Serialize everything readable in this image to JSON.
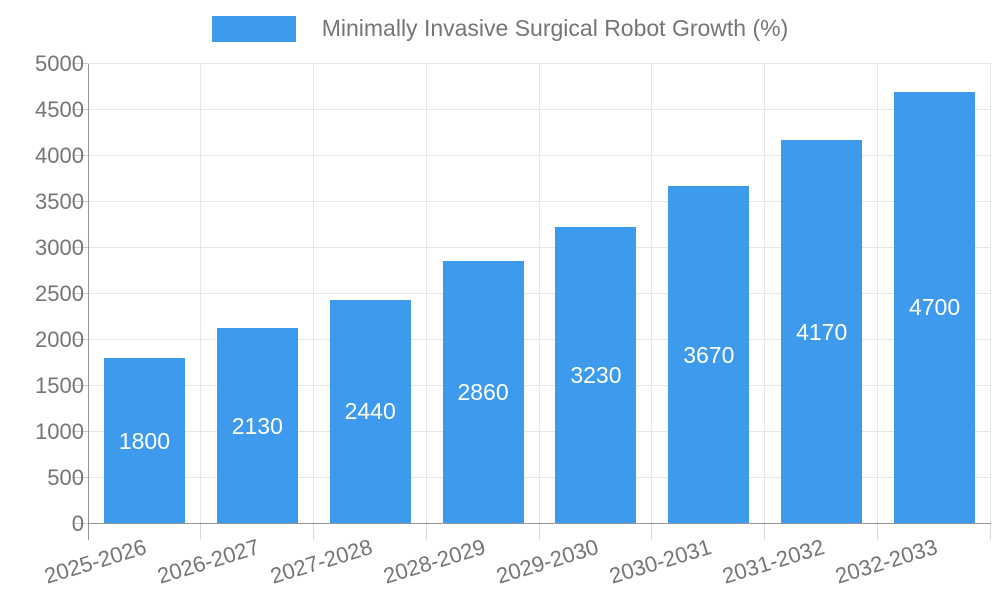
{
  "chart_data": {
    "type": "bar",
    "title": "Minimally Invasive Surgical Robot Growth (%)",
    "categories": [
      "2025-2026",
      "2026-2027",
      "2027-2028",
      "2028-2029",
      "2029-2030",
      "2030-2031",
      "2031-2032",
      "2032-2033"
    ],
    "values": [
      1800,
      2130,
      2440,
      2860,
      3230,
      3670,
      4170,
      4700
    ],
    "series_name": "Minimally Invasive Surgical Robot Growth (%)",
    "xlabel": "",
    "ylabel": "",
    "ylim": [
      0,
      5000
    ],
    "ytick_step": 500,
    "ytick_labels": [
      "0",
      "500",
      "1000",
      "1500",
      "2000",
      "2500",
      "3000",
      "3500",
      "4000",
      "4500",
      "5000"
    ],
    "grid": true,
    "legend_position": "top-center",
    "value_labels_shown": true,
    "value_label_position": "center-of-bar"
  },
  "colors": {
    "bar": "#3d9aec",
    "value_label": "#ffffff",
    "axis_text": "#757575",
    "gridline": "#e6e6e6",
    "axis_line": "#969696",
    "background": "#ffffff"
  }
}
